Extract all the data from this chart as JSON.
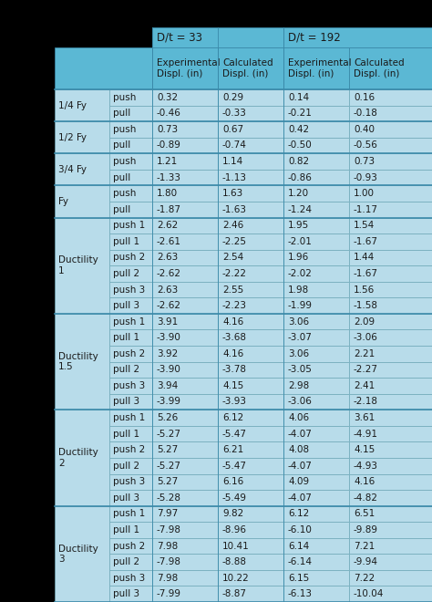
{
  "header_bg": "#5bb8d4",
  "cell_bg": "#b8dcea",
  "group_border_color": "#4a9ab5",
  "cell_border_color": "#a0c8d8",
  "text_color": "#2a2a2a",
  "col_sub_headers": [
    "Experimental\nDispl. (in)",
    "Calculated\nDispl. (in)",
    "Experimental\nDispl. (in)",
    "Calculated\nDispl. (in)"
  ],
  "group_header_labels": [
    "D/t = 33",
    "D/t = 192"
  ],
  "row_groups": [
    {
      "label": "1/4 Fy",
      "rows": [
        [
          "push",
          "0.32",
          "0.29",
          "0.14",
          "0.16"
        ],
        [
          "pull",
          "-0.46",
          "-0.33",
          "-0.21",
          "-0.18"
        ]
      ]
    },
    {
      "label": "1/2 Fy",
      "rows": [
        [
          "push",
          "0.73",
          "0.67",
          "0.42",
          "0.40"
        ],
        [
          "pull",
          "-0.89",
          "-0.74",
          "-0.50",
          "-0.56"
        ]
      ]
    },
    {
      "label": "3/4 Fy",
      "rows": [
        [
          "push",
          "1.21",
          "1.14",
          "0.82",
          "0.73"
        ],
        [
          "pull",
          "-1.33",
          "-1.13",
          "-0.86",
          "-0.93"
        ]
      ]
    },
    {
      "label": "Fy",
      "rows": [
        [
          "push",
          "1.80",
          "1.63",
          "1.20",
          "1.00"
        ],
        [
          "pull",
          "-1.87",
          "-1.63",
          "-1.24",
          "-1.17"
        ]
      ]
    },
    {
      "label": "Ductility\n1",
      "rows": [
        [
          "push 1",
          "2.62",
          "2.46",
          "1.95",
          "1.54"
        ],
        [
          "pull 1",
          "-2.61",
          "-2.25",
          "-2.01",
          "-1.67"
        ],
        [
          "push 2",
          "2.63",
          "2.54",
          "1.96",
          "1.44"
        ],
        [
          "pull 2",
          "-2.62",
          "-2.22",
          "-2.02",
          "-1.67"
        ],
        [
          "push 3",
          "2.63",
          "2.55",
          "1.98",
          "1.56"
        ],
        [
          "pull 3",
          "-2.62",
          "-2.23",
          "-1.99",
          "-1.58"
        ]
      ]
    },
    {
      "label": "Ductility\n1.5",
      "rows": [
        [
          "push 1",
          "3.91",
          "4.16",
          "3.06",
          "2.09"
        ],
        [
          "pull 1",
          "-3.90",
          "-3.68",
          "-3.07",
          "-3.06"
        ],
        [
          "push 2",
          "3.92",
          "4.16",
          "3.06",
          "2.21"
        ],
        [
          "pull 2",
          "-3.90",
          "-3.78",
          "-3.05",
          "-2.27"
        ],
        [
          "push 3",
          "3.94",
          "4.15",
          "2.98",
          "2.41"
        ],
        [
          "pull 3",
          "-3.99",
          "-3.93",
          "-3.06",
          "-2.18"
        ]
      ]
    },
    {
      "label": "Ductility\n2",
      "rows": [
        [
          "push 1",
          "5.26",
          "6.12",
          "4.06",
          "3.61"
        ],
        [
          "pull 1",
          "-5.27",
          "-5.47",
          "-4.07",
          "-4.91"
        ],
        [
          "push 2",
          "5.27",
          "6.21",
          "4.08",
          "4.15"
        ],
        [
          "pull 2",
          "-5.27",
          "-5.47",
          "-4.07",
          "-4.93"
        ],
        [
          "push 3",
          "5.27",
          "6.16",
          "4.09",
          "4.16"
        ],
        [
          "pull 3",
          "-5.28",
          "-5.49",
          "-4.07",
          "-4.82"
        ]
      ]
    },
    {
      "label": "Ductility\n3",
      "rows": [
        [
          "push 1",
          "7.97",
          "9.82",
          "6.12",
          "6.51"
        ],
        [
          "pull 1",
          "-7.98",
          "-8.96",
          "-6.10",
          "-9.89"
        ],
        [
          "push 2",
          "7.98",
          "10.41",
          "6.14",
          "7.21"
        ],
        [
          "pull 2",
          "-7.98",
          "-8.88",
          "-6.14",
          "-9.94"
        ],
        [
          "push 3",
          "7.98",
          "10.22",
          "6.15",
          "7.22"
        ],
        [
          "pull 3",
          "-7.99",
          "-8.87",
          "-6.13",
          "-10.04"
        ]
      ]
    }
  ],
  "figsize": [
    4.74,
    6.6
  ],
  "dpi": 100
}
